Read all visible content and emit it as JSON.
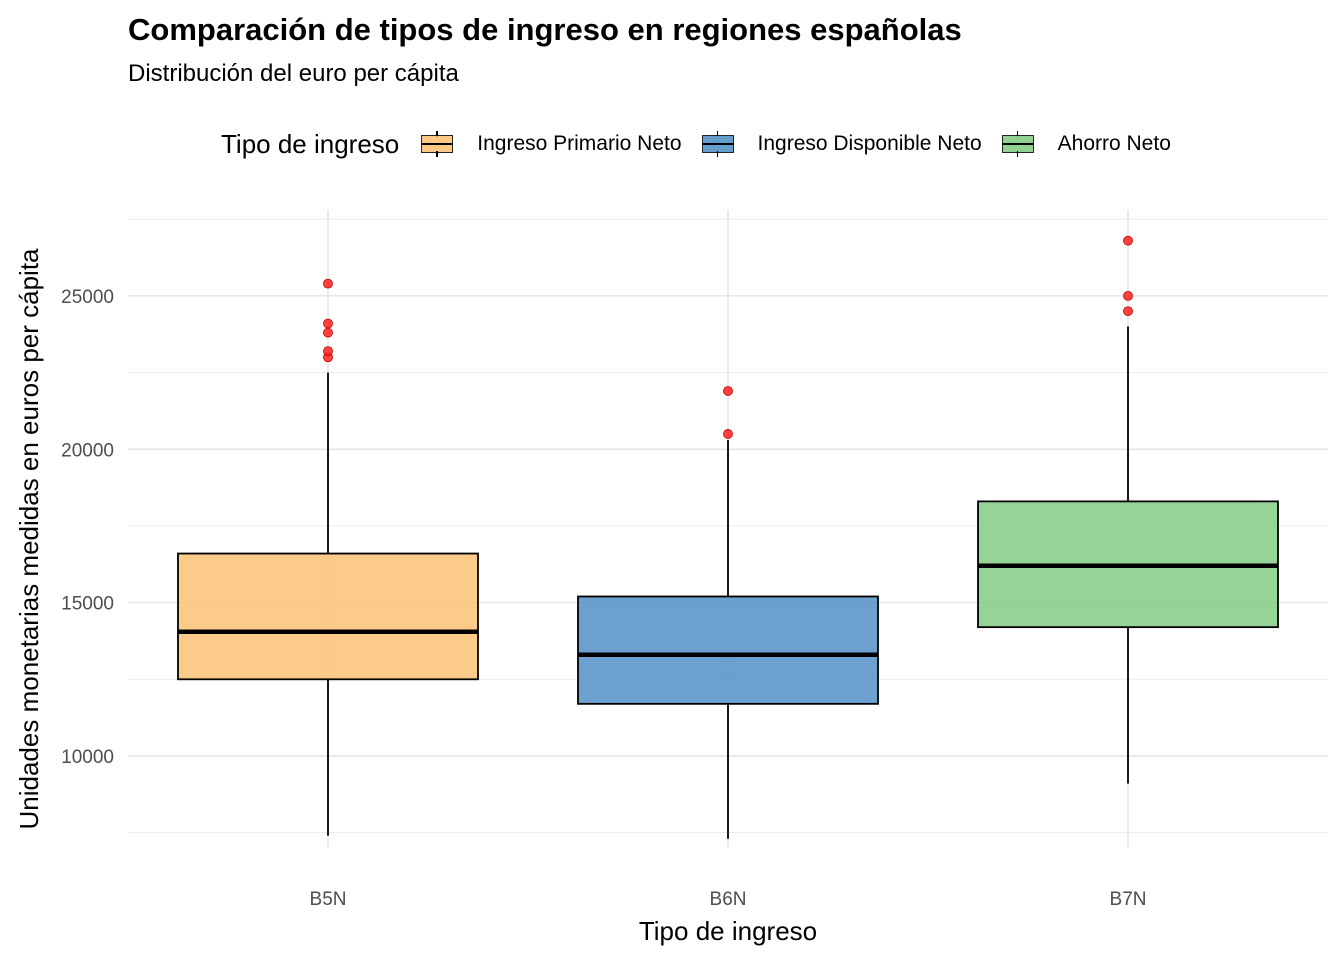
{
  "chart_data": {
    "type": "boxplot",
    "title": "Comparación de tipos de ingreso en regiones españolas",
    "subtitle": "Distribución del euro per cápita",
    "xlabel": "Tipo de ingreso",
    "ylabel": "Unidades monetarias medidas en euros per cápita",
    "ylim": [
      7000,
      27800
    ],
    "y_ticks": [
      10000,
      15000,
      20000,
      25000
    ],
    "categories": [
      "B5N",
      "B6N",
      "B7N"
    ],
    "legend": {
      "title": "Tipo de ingreso",
      "position": "top",
      "items": [
        {
          "label": "Ingreso Primario Neto",
          "color": "#fdbf6f"
        },
        {
          "label": "Ingreso Disponible Neto",
          "color": "#4a8bc4"
        },
        {
          "label": "Ahorro Neto",
          "color": "#7fc97f"
        }
      ]
    },
    "series": [
      {
        "category": "B5N",
        "whisker_low": 7400,
        "q1": 12500,
        "median": 14050,
        "q3": 16600,
        "whisker_high": 22500,
        "outliers": [
          23000,
          23200,
          23800,
          24100,
          25400
        ],
        "color": "#fdbf6f"
      },
      {
        "category": "B6N",
        "whisker_low": 7300,
        "q1": 11700,
        "median": 13300,
        "q3": 15200,
        "whisker_high": 20300,
        "outliers": [
          20500,
          21900
        ],
        "color": "#4a8bc4"
      },
      {
        "category": "B7N",
        "whisker_low": 9100,
        "q1": 14200,
        "median": 16200,
        "q3": 18300,
        "whisker_high": 24000,
        "outliers": [
          24500,
          25000,
          26800
        ],
        "color": "#7fc97f"
      }
    ],
    "outlier_color": "#ff2020",
    "grid": true
  }
}
